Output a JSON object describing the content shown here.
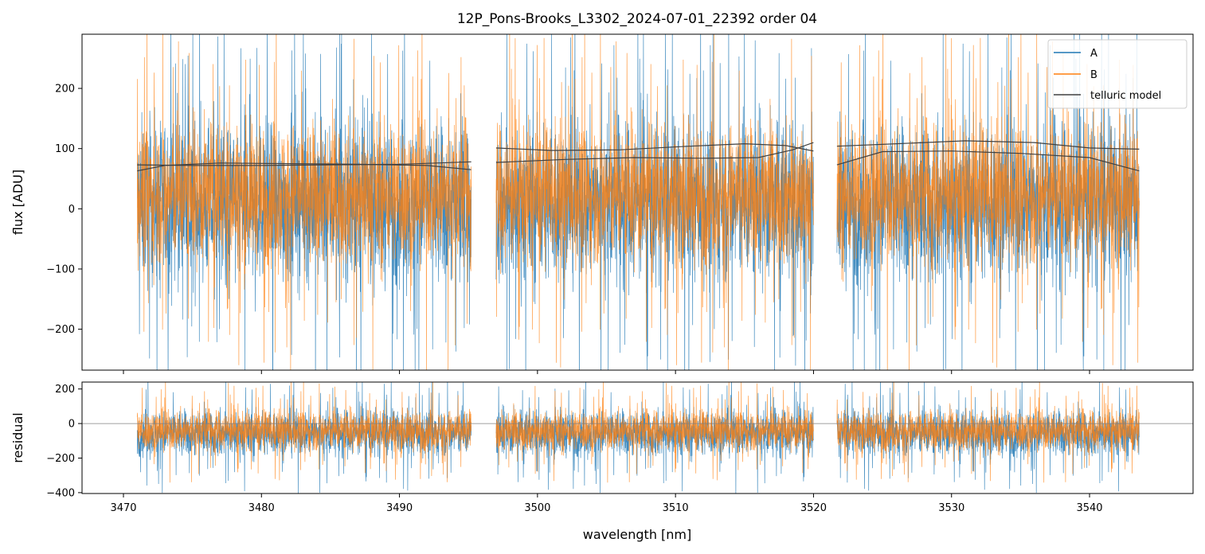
{
  "chart_data": [
    {
      "type": "line",
      "title": "12P_Pons-Brooks_L3302_2024-07-01_22392  order 04",
      "xlabel": "",
      "ylabel": "flux [ADU]",
      "xlim": [
        3467,
        3547.5
      ],
      "ylim": [
        -268,
        290
      ],
      "yticks": [
        -200,
        -100,
        0,
        100,
        200
      ],
      "yticklabels": [
        "−200",
        "−100",
        "0",
        "100",
        "200"
      ],
      "grid": false,
      "legend_position": "top-right",
      "segments": [
        [
          3471.0,
          3495.2
        ],
        [
          3497.0,
          3520.0
        ],
        [
          3521.7,
          3543.6
        ]
      ],
      "colors": {
        "A": "#1f77b4",
        "B": "#ff7f0e",
        "telluric": "#404040"
      },
      "series": [
        {
          "name": "A",
          "note_level": "noise about ~0, spread ~±150 ADU",
          "center": 10,
          "spread": 150
        },
        {
          "name": "B",
          "center": 25,
          "spread": 130
        },
        {
          "name": "telluric model",
          "curves": [
            {
              "x": [
                3471.0,
                3475,
                3480,
                3485,
                3490,
                3495.2
              ],
              "y": [
                73,
                72,
                72,
                73,
                74,
                78
              ]
            },
            {
              "x": [
                3471.0,
                3473,
                3477,
                3482,
                3487,
                3492,
                3495.2
              ],
              "y": [
                63,
                72,
                76,
                75,
                74,
                72,
                65
              ]
            },
            {
              "x": [
                3497.0,
                3501,
                3506,
                3511,
                3515,
                3518,
                3520.0
              ],
              "y": [
                101,
                97,
                98,
                104,
                108,
                105,
                96
              ]
            },
            {
              "x": [
                3497.0,
                3502,
                3507,
                3512,
                3516,
                3518.5,
                3520.0
              ],
              "y": [
                77,
                82,
                85,
                84,
                85,
                98,
                110
              ]
            },
            {
              "x": [
                3521.7,
                3526,
                3531,
                3536,
                3540,
                3543.6
              ],
              "y": [
                104,
                108,
                113,
                110,
                101,
                99
              ]
            },
            {
              "x": [
                3521.7,
                3525,
                3530,
                3535,
                3540,
                3543.6
              ],
              "y": [
                73,
                95,
                96,
                92,
                85,
                63
              ]
            }
          ]
        }
      ]
    },
    {
      "type": "line",
      "xlabel": "wavelength [nm]",
      "ylabel": "residual",
      "xlim": [
        3467,
        3547.5
      ],
      "ylim": [
        -405,
        240
      ],
      "xticks": [
        3470,
        3480,
        3490,
        3500,
        3510,
        3520,
        3530,
        3540
      ],
      "xticklabels": [
        "3470",
        "3480",
        "3490",
        "3500",
        "3510",
        "3520",
        "3530",
        "3540"
      ],
      "yticks": [
        -400,
        -200,
        0,
        200
      ],
      "yticklabels": [
        "−400",
        "−200",
        "0",
        "200"
      ],
      "zero_line": 0,
      "series": [
        {
          "name": "A",
          "center": -55,
          "spread": 150
        },
        {
          "name": "B",
          "center": -40,
          "spread": 130
        }
      ]
    }
  ],
  "legend": {
    "entries": [
      {
        "label": "A",
        "color": "#1f77b4"
      },
      {
        "label": "B",
        "color": "#ff7f0e"
      },
      {
        "label": "telluric model",
        "color": "#404040"
      }
    ]
  }
}
